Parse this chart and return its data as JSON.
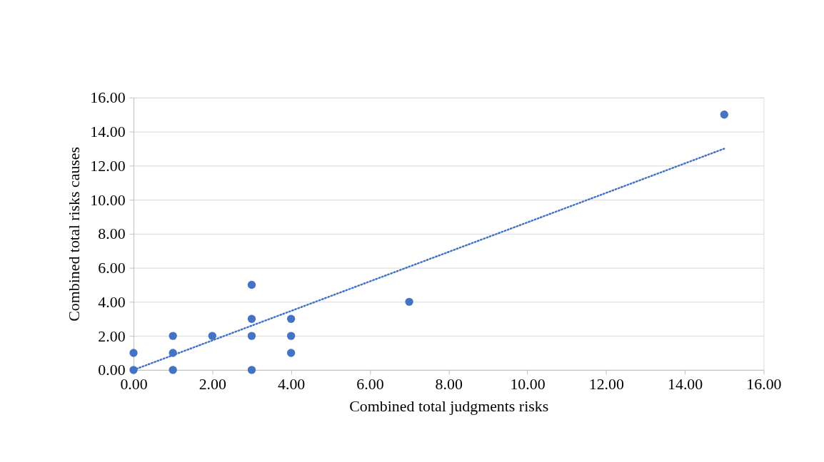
{
  "chart_data": {
    "type": "scatter",
    "xlabel": "Combined total judgments risks",
    "ylabel": "Combined total risks causes",
    "xlim": [
      0,
      16
    ],
    "ylim": [
      0,
      16
    ],
    "xticks": [
      {
        "value": 0,
        "label": "0.00"
      },
      {
        "value": 2,
        "label": "2.00"
      },
      {
        "value": 4,
        "label": "4.00"
      },
      {
        "value": 6,
        "label": "6.00"
      },
      {
        "value": 8,
        "label": "8.00"
      },
      {
        "value": 10,
        "label": "10.00"
      },
      {
        "value": 12,
        "label": "12.00"
      },
      {
        "value": 14,
        "label": "14.00"
      },
      {
        "value": 16,
        "label": "16.00"
      }
    ],
    "yticks": [
      {
        "value": 0,
        "label": "0.00"
      },
      {
        "value": 2,
        "label": "2.00"
      },
      {
        "value": 4,
        "label": "4.00"
      },
      {
        "value": 6,
        "label": "6.00"
      },
      {
        "value": 8,
        "label": "8.00"
      },
      {
        "value": 10,
        "label": "10.00"
      },
      {
        "value": 12,
        "label": "12.00"
      },
      {
        "value": 14,
        "label": "14.00"
      },
      {
        "value": 16,
        "label": "16.00"
      }
    ],
    "grid": "y",
    "series": [
      {
        "marker": "circle",
        "color": "#4472c4",
        "x": [
          0,
          0,
          1,
          1,
          1,
          2,
          3,
          3,
          3,
          3,
          4,
          4,
          4,
          7,
          15
        ],
        "values": [
          0,
          1,
          0,
          1,
          2,
          2,
          0,
          2,
          3,
          5,
          1,
          2,
          3,
          4,
          15
        ]
      },
      {
        "type": "line",
        "color": "#4472c4",
        "line_style": "dotted",
        "x": [
          0,
          15
        ],
        "values": [
          0,
          13
        ]
      }
    ]
  }
}
